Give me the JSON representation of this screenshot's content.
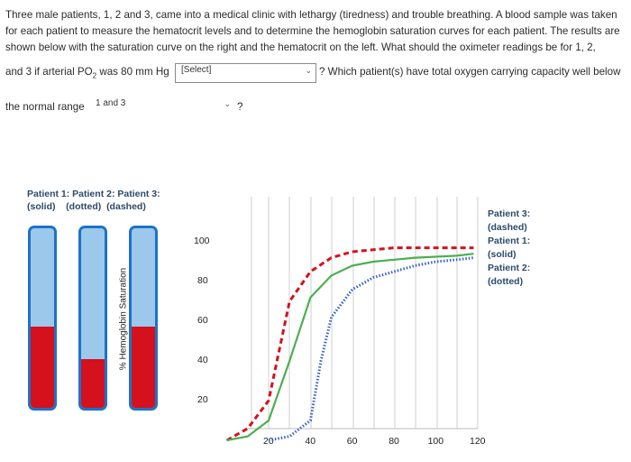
{
  "question": {
    "lines": [
      "Three male patients, 1, 2 and 3, came into a medical clinic with lethargy (tiredness) and trouble breathing.  A blood sample was taken",
      "for each patient to measure the hematocrit levels and to determine the hemoglobin saturation curves for each patient. The results are",
      "shown below with the saturation curve on the right and the hematocrit on the left.  What should the oximeter readings be for 1, 2,"
    ],
    "line4_prefix": "and 3 if arterial PO",
    "line4_sub": "2",
    "line4_mid": " was 80 mm Hg",
    "line4_suffix": "? Which patient(s) have total oxygen carrying capacity well below",
    "line5_prefix": "the normal range",
    "line5_suffix": "?"
  },
  "select1": {
    "value": "[Select]",
    "chevron": "⌄"
  },
  "select2": {
    "value": "1 and 3",
    "chevron": "⌄"
  },
  "patients": {
    "header_line1": "Patient 1: Patient 2: Patient 3:",
    "header_line2": "(solid)    (dotted)  (dashed)",
    "tubes": [
      {
        "name": "Patient 1",
        "hematocrit_fraction": 0.45
      },
      {
        "name": "Patient 2",
        "hematocrit_fraction": 0.27
      },
      {
        "name": "Patient 3",
        "hematocrit_fraction": 0.45
      }
    ],
    "colors": {
      "plasma": "#9cc8ec",
      "cells": "#d4111c",
      "tube_border": "#1e72c8"
    }
  },
  "chart_data": {
    "type": "line",
    "ylabel": "% Hemoglobin Saturation",
    "xlabel": "",
    "y_ticks": [
      "100",
      "80",
      "60",
      "40",
      "20"
    ],
    "x_ticks": [
      "20",
      "40",
      "60",
      "80",
      "100",
      "120"
    ],
    "xlim": [
      0,
      120
    ],
    "ylim": [
      0,
      100
    ],
    "grid": true,
    "legend_placement": "right",
    "legend": [
      {
        "label": "Patient 3:",
        "style": "(dashed)"
      },
      {
        "label": "Patient 1:",
        "style": "(solid)"
      },
      {
        "label": "Patient 2:",
        "style": "(dotted)"
      }
    ],
    "series": [
      {
        "name": "Patient 3",
        "style": "dashed",
        "color": "#d4111c",
        "x": [
          0,
          10,
          20,
          30,
          40,
          50,
          60,
          70,
          80,
          90,
          100,
          110,
          118
        ],
        "y": [
          0,
          6,
          20,
          70,
          85,
          92,
          95,
          96,
          97,
          97,
          97,
          97,
          97
        ]
      },
      {
        "name": "Patient 1",
        "style": "solid",
        "color": "#4caf50",
        "x": [
          0,
          10,
          20,
          30,
          40,
          50,
          60,
          70,
          80,
          90,
          100,
          110,
          118
        ],
        "y": [
          0,
          2,
          10,
          40,
          72,
          83,
          88,
          90,
          91,
          92,
          92.5,
          93,
          94
        ]
      },
      {
        "name": "Patient 2",
        "style": "dotted",
        "color": "#3a5fc8",
        "x": [
          20,
          30,
          40,
          45,
          50,
          60,
          70,
          80,
          90,
          100,
          110,
          118
        ],
        "y": [
          0,
          2,
          10,
          40,
          62,
          76,
          82,
          85,
          88,
          90,
          91,
          92
        ]
      }
    ]
  }
}
